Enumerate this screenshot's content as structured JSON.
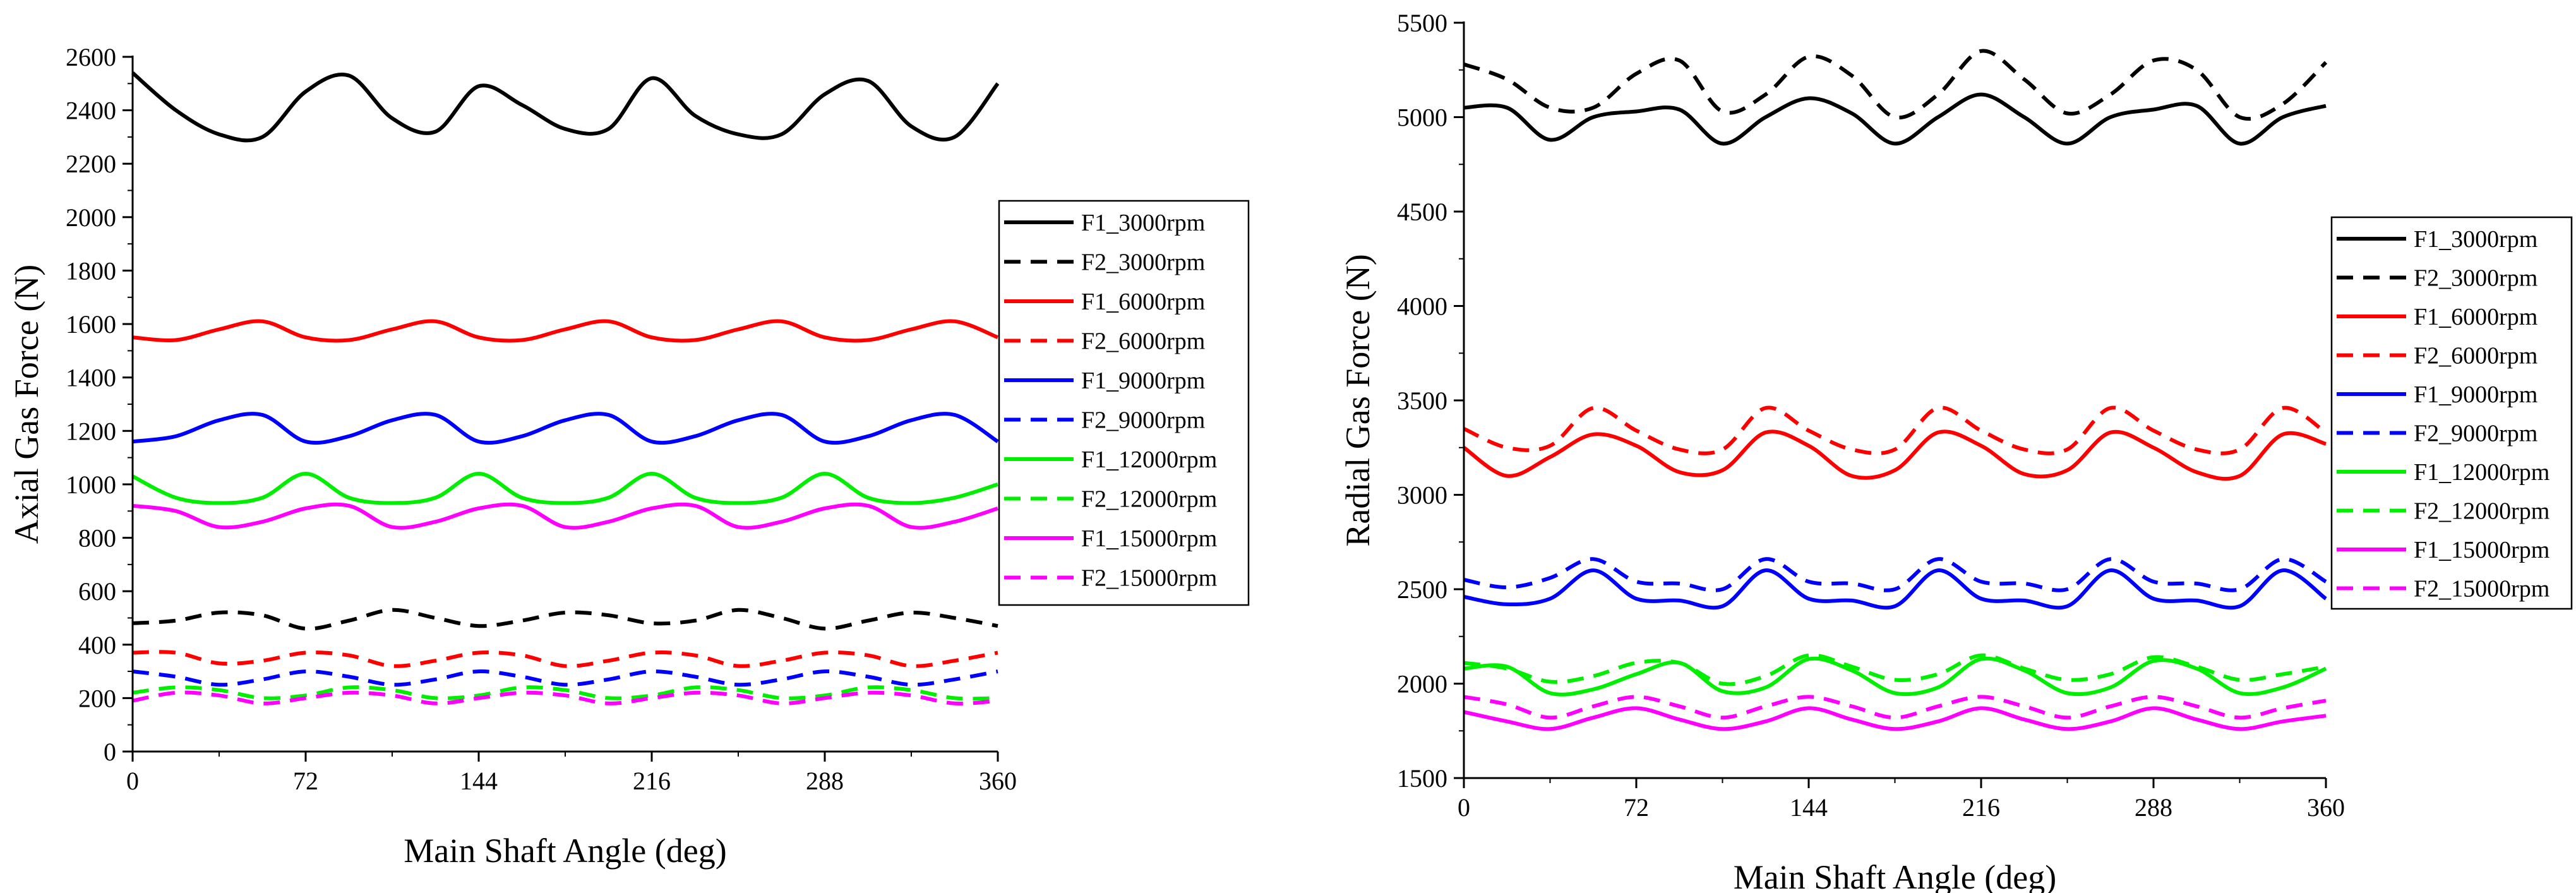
{
  "chart_data": [
    {
      "type": "line",
      "xlabel": "Main Shaft Angle (deg)",
      "ylabel": "Axial Gas Force (N)",
      "xlim": [
        0,
        360
      ],
      "ylim": [
        0,
        2600
      ],
      "xticks": [
        0,
        72,
        144,
        216,
        288,
        360
      ],
      "yticks": [
        0,
        200,
        400,
        600,
        800,
        1000,
        1200,
        1400,
        1600,
        1800,
        2000,
        2200,
        2400,
        2600
      ],
      "grid": false,
      "legend_position": "right",
      "x": [
        0,
        18,
        36,
        54,
        72,
        90,
        108,
        126,
        144,
        162,
        180,
        198,
        216,
        234,
        252,
        270,
        288,
        306,
        324,
        342,
        360
      ],
      "series": [
        {
          "name": "F1_3000rpm",
          "color": "#000000",
          "dash": "solid",
          "values": [
            2540,
            2400,
            2310,
            2300,
            2470,
            2530,
            2370,
            2320,
            2490,
            2420,
            2330,
            2330,
            2520,
            2380,
            2310,
            2310,
            2460,
            2510,
            2340,
            2300,
            2500
          ]
        },
        {
          "name": "F2_3000rpm",
          "color": "#000000",
          "dash": "dashed",
          "values": [
            480,
            490,
            520,
            510,
            460,
            490,
            530,
            500,
            470,
            490,
            520,
            510,
            480,
            490,
            530,
            500,
            460,
            490,
            520,
            500,
            470
          ]
        },
        {
          "name": "F1_6000rpm",
          "color": "#ff0000",
          "dash": "solid",
          "values": [
            1550,
            1540,
            1580,
            1610,
            1550,
            1540,
            1580,
            1610,
            1550,
            1540,
            1580,
            1610,
            1550,
            1540,
            1580,
            1610,
            1550,
            1540,
            1580,
            1610,
            1550
          ]
        },
        {
          "name": "F2_6000rpm",
          "color": "#ff0000",
          "dash": "dashed",
          "values": [
            370,
            370,
            330,
            340,
            370,
            360,
            320,
            340,
            370,
            360,
            320,
            340,
            370,
            360,
            320,
            340,
            370,
            360,
            320,
            340,
            370
          ]
        },
        {
          "name": "F1_9000rpm",
          "color": "#0000ff",
          "dash": "solid",
          "values": [
            1160,
            1180,
            1240,
            1260,
            1160,
            1180,
            1240,
            1260,
            1160,
            1180,
            1240,
            1260,
            1160,
            1180,
            1240,
            1260,
            1160,
            1180,
            1240,
            1260,
            1160
          ]
        },
        {
          "name": "F2_9000rpm",
          "color": "#0000ff",
          "dash": "dashed",
          "values": [
            300,
            280,
            250,
            270,
            300,
            280,
            250,
            270,
            300,
            280,
            250,
            270,
            300,
            280,
            250,
            270,
            300,
            280,
            250,
            270,
            300
          ]
        },
        {
          "name": "F1_12000rpm",
          "color": "#00ee00",
          "dash": "solid",
          "values": [
            1030,
            950,
            930,
            950,
            1040,
            950,
            930,
            950,
            1040,
            950,
            930,
            950,
            1040,
            950,
            930,
            950,
            1040,
            950,
            930,
            950,
            1000
          ]
        },
        {
          "name": "F2_12000rpm",
          "color": "#00ee00",
          "dash": "dashed",
          "values": [
            220,
            240,
            230,
            200,
            210,
            240,
            230,
            200,
            210,
            240,
            230,
            200,
            210,
            240,
            230,
            200,
            210,
            240,
            230,
            200,
            200
          ]
        },
        {
          "name": "F1_15000rpm",
          "color": "#ff00ff",
          "dash": "solid",
          "values": [
            920,
            900,
            840,
            860,
            910,
            920,
            840,
            860,
            910,
            920,
            840,
            860,
            910,
            920,
            840,
            860,
            910,
            920,
            840,
            860,
            910
          ]
        },
        {
          "name": "F2_15000rpm",
          "color": "#ff00ff",
          "dash": "dashed",
          "values": [
            190,
            220,
            210,
            180,
            200,
            220,
            210,
            180,
            200,
            220,
            210,
            180,
            200,
            220,
            210,
            180,
            200,
            220,
            210,
            180,
            190
          ]
        }
      ]
    },
    {
      "type": "line",
      "xlabel": "Main Shaft Angle (deg)",
      "ylabel": "Radial Gas Force (N)",
      "xlim": [
        0,
        360
      ],
      "ylim": [
        1500,
        5500
      ],
      "xticks": [
        0,
        72,
        144,
        216,
        288,
        360
      ],
      "yticks": [
        1500,
        2000,
        2500,
        3000,
        3500,
        4000,
        4500,
        5000,
        5500
      ],
      "grid": false,
      "legend_position": "right",
      "x": [
        0,
        18,
        36,
        54,
        72,
        90,
        108,
        126,
        144,
        162,
        180,
        198,
        216,
        234,
        252,
        270,
        288,
        306,
        324,
        342,
        360
      ],
      "series": [
        {
          "name": "F1_3000rpm",
          "color": "#000000",
          "dash": "solid",
          "values": [
            5050,
            5050,
            4880,
            5000,
            5030,
            5040,
            4860,
            5000,
            5100,
            5020,
            4860,
            5000,
            5120,
            5000,
            4860,
            5000,
            5040,
            5060,
            4860,
            5000,
            5060
          ]
        },
        {
          "name": "F2_3000rpm",
          "color": "#000000",
          "dash": "dashed",
          "values": [
            5280,
            5200,
            5050,
            5050,
            5230,
            5300,
            5030,
            5120,
            5320,
            5220,
            5000,
            5120,
            5350,
            5200,
            5020,
            5120,
            5300,
            5250,
            5000,
            5070,
            5290
          ]
        },
        {
          "name": "F1_6000rpm",
          "color": "#ff0000",
          "dash": "solid",
          "values": [
            3250,
            3100,
            3200,
            3320,
            3260,
            3120,
            3130,
            3330,
            3260,
            3100,
            3130,
            3330,
            3260,
            3110,
            3130,
            3330,
            3250,
            3120,
            3100,
            3320,
            3270
          ]
        },
        {
          "name": "F2_6000rpm",
          "color": "#ff0000",
          "dash": "dashed",
          "values": [
            3350,
            3250,
            3260,
            3460,
            3340,
            3240,
            3240,
            3460,
            3340,
            3240,
            3240,
            3460,
            3340,
            3240,
            3240,
            3460,
            3340,
            3240,
            3240,
            3460,
            3330
          ]
        },
        {
          "name": "F1_9000rpm",
          "color": "#0000ff",
          "dash": "solid",
          "values": [
            2460,
            2420,
            2450,
            2600,
            2450,
            2440,
            2410,
            2600,
            2450,
            2440,
            2410,
            2600,
            2450,
            2440,
            2410,
            2600,
            2450,
            2440,
            2410,
            2600,
            2450
          ]
        },
        {
          "name": "F2_9000rpm",
          "color": "#0000ff",
          "dash": "dashed",
          "values": [
            2550,
            2510,
            2560,
            2660,
            2540,
            2530,
            2500,
            2660,
            2540,
            2530,
            2500,
            2660,
            2540,
            2530,
            2500,
            2660,
            2540,
            2530,
            2500,
            2660,
            2540
          ]
        },
        {
          "name": "F1_12000rpm",
          "color": "#00ee00",
          "dash": "solid",
          "values": [
            2080,
            2090,
            1950,
            1970,
            2050,
            2110,
            1960,
            1980,
            2130,
            2070,
            1950,
            1980,
            2130,
            2070,
            1950,
            1980,
            2120,
            2080,
            1950,
            1980,
            2080
          ]
        },
        {
          "name": "F2_12000rpm",
          "color": "#00ee00",
          "dash": "dashed",
          "values": [
            2110,
            2080,
            2010,
            2040,
            2110,
            2110,
            2000,
            2040,
            2150,
            2090,
            2020,
            2050,
            2150,
            2080,
            2020,
            2050,
            2140,
            2090,
            2020,
            2050,
            2090
          ]
        },
        {
          "name": "F1_15000rpm",
          "color": "#ff00ff",
          "dash": "solid",
          "values": [
            1850,
            1800,
            1760,
            1820,
            1870,
            1810,
            1760,
            1800,
            1870,
            1810,
            1760,
            1800,
            1870,
            1810,
            1760,
            1800,
            1870,
            1810,
            1760,
            1800,
            1830
          ]
        },
        {
          "name": "F2_15000rpm",
          "color": "#ff00ff",
          "dash": "dashed",
          "values": [
            1930,
            1890,
            1820,
            1880,
            1930,
            1880,
            1820,
            1880,
            1930,
            1880,
            1820,
            1880,
            1930,
            1880,
            1820,
            1880,
            1930,
            1880,
            1820,
            1870,
            1910
          ]
        }
      ]
    }
  ]
}
